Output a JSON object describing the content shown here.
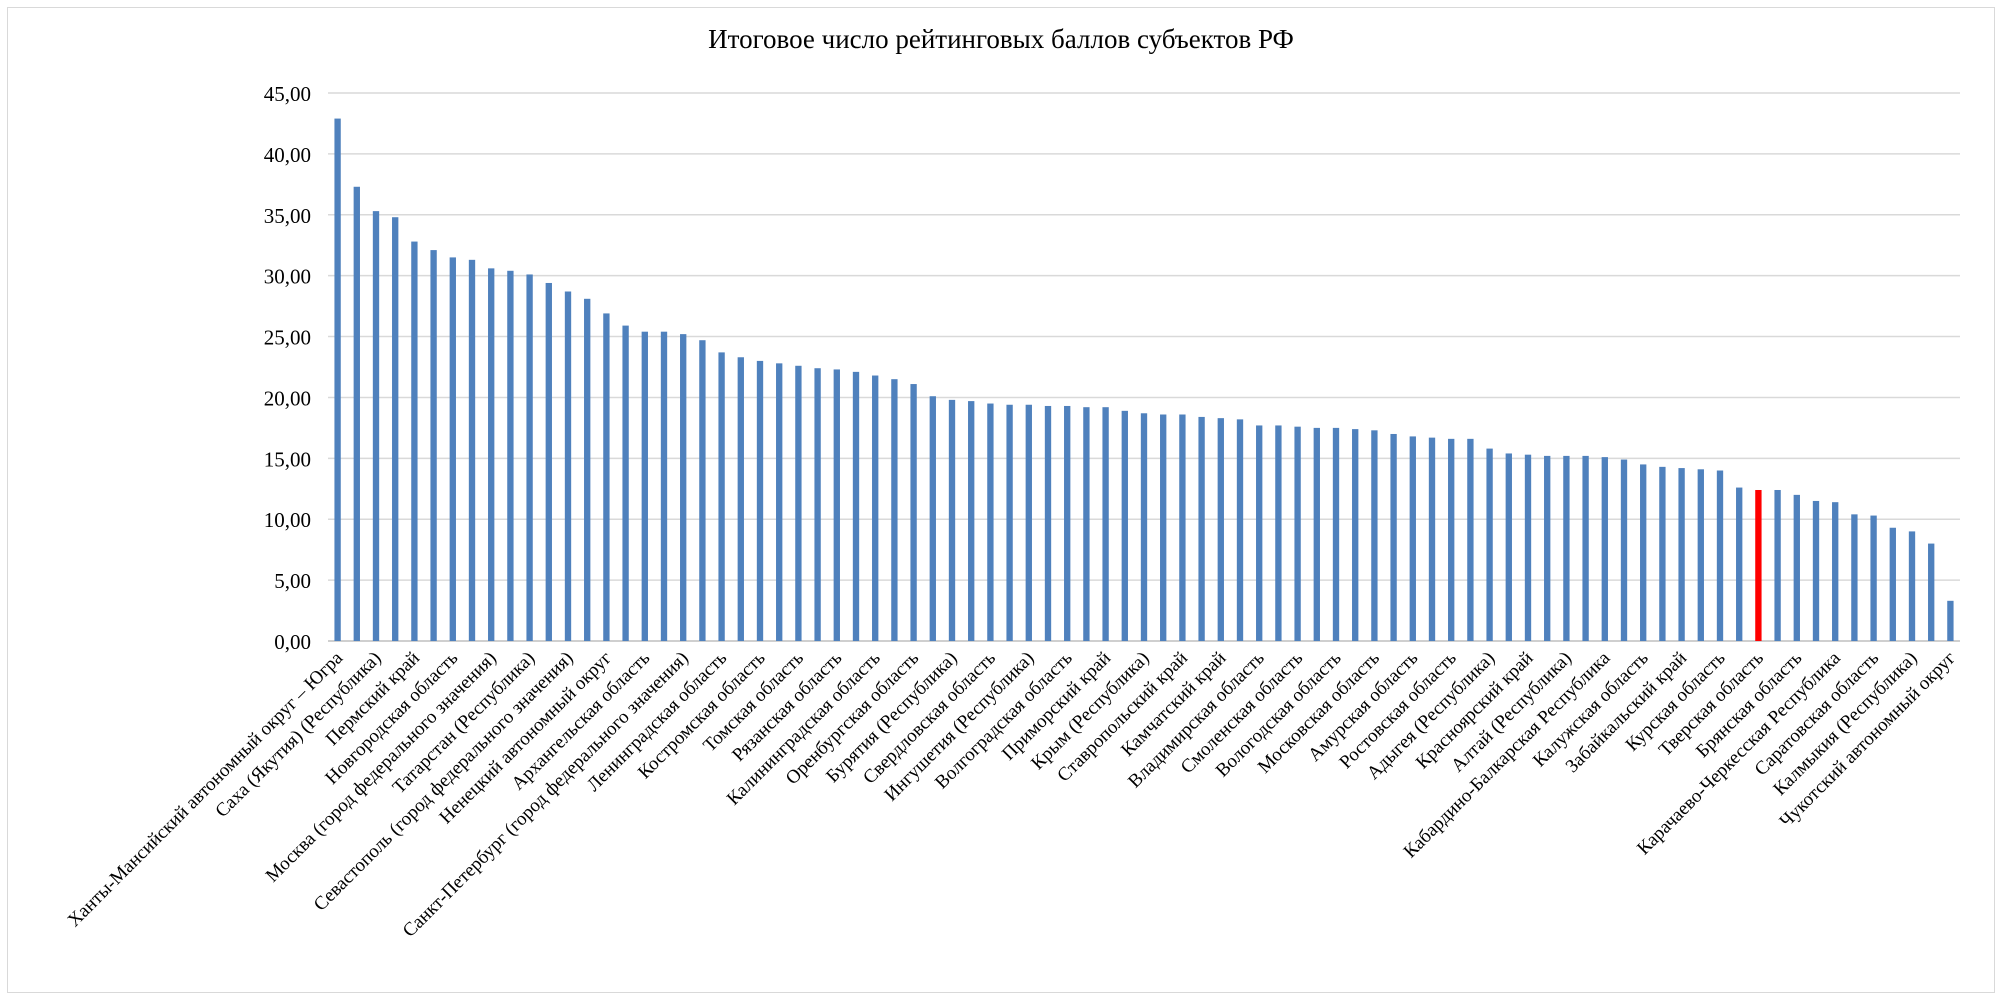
{
  "chart_data": {
    "type": "bar",
    "title": "Итоговое число рейтинговых баллов субъектов РФ",
    "xlabel": "",
    "ylabel": "",
    "ylim": [
      0,
      45
    ],
    "y_ticks": [
      "0,00",
      "5,00",
      "10,00",
      "15,00",
      "20,00",
      "25,00",
      "30,00",
      "35,00",
      "40,00",
      "45,00"
    ],
    "grid": true,
    "colors": {
      "bar": "#4f81bd",
      "highlight": "#ff0000",
      "grid": "#d9d9d9",
      "axis": "#bfbfbf"
    },
    "highlight_index": 74,
    "labeled_categories": [
      "Ханты-Мансийский автономный округ – Югра",
      "Саха (Якутия) (Республика)",
      "Пермский край",
      "Новгородская область",
      "Москва (город федерального значения)",
      "Татарстан (Республика)",
      "Севастополь (город федерального значения)",
      "Ненецкий автономный округ",
      "Архангельская область",
      "Санкт-Петербург (город федерального значения)",
      "Ленинградская область",
      "Костромская область",
      "Томская область",
      "Рязанская область",
      "Калининградская область",
      "Оренбургская область",
      "Бурятия (Республика)",
      "Свердловская область",
      "Ингушетия (Республика)",
      "Волгоградская область",
      "Приморский край",
      "Крым (Республика)",
      "Ставропольский край",
      "Камчатский край",
      "Владимирская область",
      "Смоленская область",
      "Вологодская область",
      "Московская область",
      "Амурская область",
      "Ростовская область",
      "Адыгея (Республика)",
      "Красноярский край",
      "Алтай (Республика)",
      "Кабардино-Балкарская Республика",
      "Калужская область",
      "Забайкальский край",
      "Курская область",
      "Тверская область",
      "Брянская область",
      "Карачаево-Черкесская Республика",
      "Саратовская область",
      "Калмыкия (Республика)",
      "Чукотский автономный округ"
    ],
    "label_every": 2,
    "values": [
      42.9,
      37.3,
      35.3,
      34.8,
      32.8,
      32.1,
      31.5,
      31.3,
      30.6,
      30.4,
      30.1,
      29.4,
      28.7,
      28.1,
      26.9,
      25.9,
      25.4,
      25.4,
      25.2,
      24.7,
      23.7,
      23.3,
      23.0,
      22.8,
      22.6,
      22.4,
      22.3,
      22.1,
      21.8,
      21.5,
      21.1,
      20.1,
      19.8,
      19.7,
      19.5,
      19.4,
      19.4,
      19.3,
      19.3,
      19.2,
      19.2,
      18.9,
      18.7,
      18.6,
      18.6,
      18.4,
      18.3,
      18.2,
      17.7,
      17.7,
      17.6,
      17.5,
      17.5,
      17.4,
      17.3,
      17.0,
      16.8,
      16.7,
      16.6,
      16.6,
      15.8,
      15.4,
      15.3,
      15.2,
      15.2,
      15.2,
      15.1,
      14.9,
      14.5,
      14.3,
      14.2,
      14.1,
      14.0,
      12.6,
      12.4,
      12.4,
      12.0,
      11.5,
      11.4,
      10.4,
      10.3,
      9.3,
      9.0,
      8.0,
      3.3
    ]
  }
}
